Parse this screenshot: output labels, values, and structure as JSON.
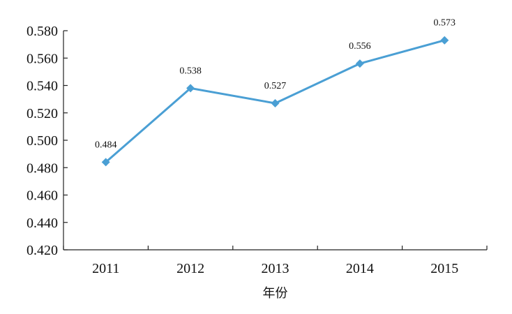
{
  "chart_data": {
    "type": "line",
    "title": "",
    "xlabel": "年份",
    "ylabel": "",
    "categories": [
      "2011",
      "2012",
      "2013",
      "2014",
      "2015"
    ],
    "series": [
      {
        "values": [
          0.484,
          0.538,
          0.527,
          0.556,
          0.573
        ],
        "value_labels": [
          "0.484",
          "0.538",
          "0.527",
          "0.556",
          "0.573"
        ],
        "color": "#4a9fd4",
        "marker": "diamond"
      }
    ],
    "ylim": [
      0.42,
      0.58
    ],
    "yticks": [
      0.42,
      0.44,
      0.46,
      0.48,
      0.5,
      0.52,
      0.54,
      0.56,
      0.58
    ],
    "ytick_labels": [
      "0.420",
      "0.440",
      "0.460",
      "0.480",
      "0.500",
      "0.520",
      "0.540",
      "0.560",
      "0.580"
    ],
    "grid": false,
    "legend": "none"
  }
}
